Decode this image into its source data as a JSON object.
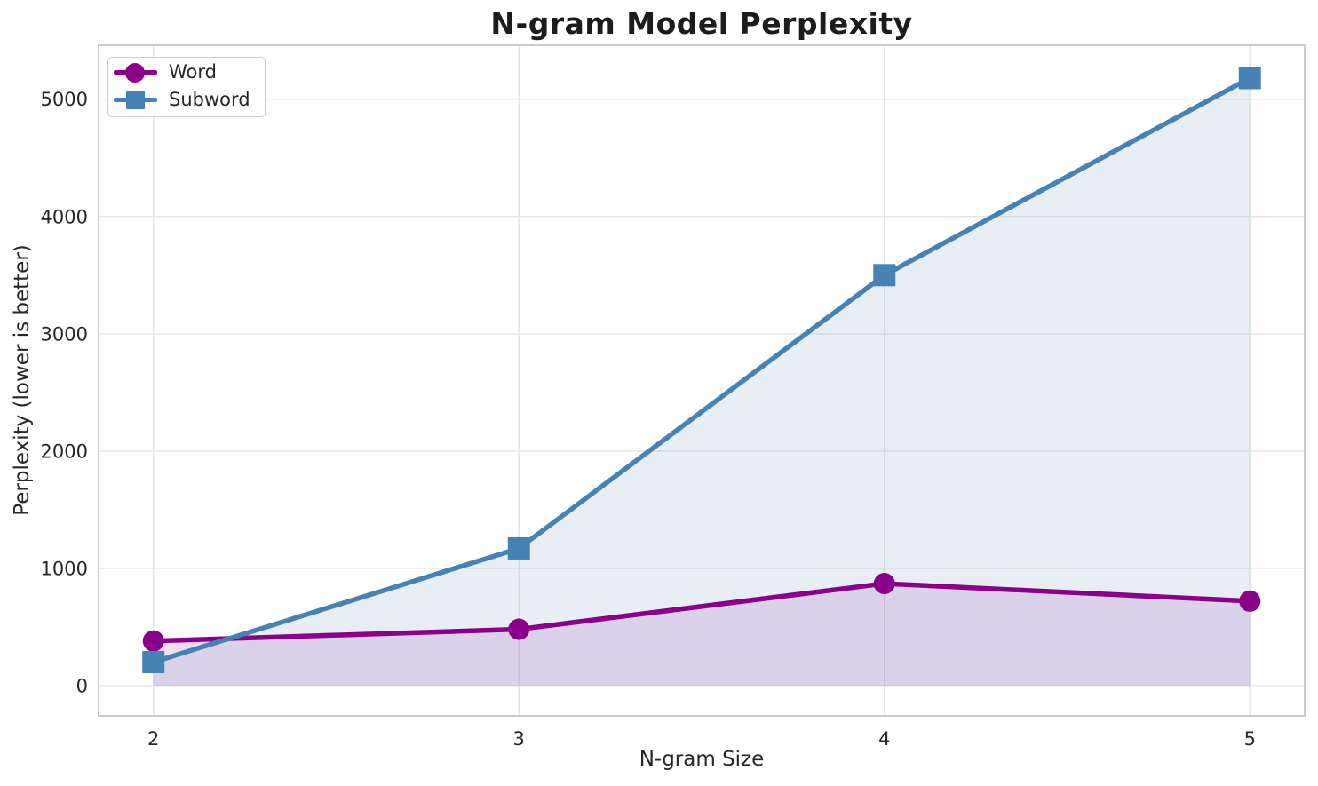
{
  "chart_data": {
    "type": "line",
    "title": "N-gram Model Perplexity",
    "xlabel": "N-gram Size",
    "ylabel": "Perplexity (lower is better)",
    "x": [
      2,
      3,
      4,
      5
    ],
    "series": [
      {
        "name": "Word",
        "marker": "circle",
        "color": "#8B008B",
        "values": [
          380,
          480,
          870,
          720
        ]
      },
      {
        "name": "Subword",
        "marker": "square",
        "color": "#4682B4",
        "values": [
          200,
          1170,
          3500,
          5180
        ]
      }
    ],
    "xtick_labels": [
      "2",
      "3",
      "4",
      "5"
    ],
    "xtick_values": [
      2,
      3,
      4,
      5
    ],
    "ytick_labels": [
      "0",
      "1000",
      "2000",
      "3000",
      "4000",
      "5000"
    ],
    "ytick_values": [
      0,
      1000,
      2000,
      3000,
      4000,
      5000
    ],
    "xlim": [
      1.85,
      5.15
    ],
    "ylim": [
      -258,
      5460
    ],
    "grid": true,
    "fill_to_zero": true,
    "fill_opacity": 0.13,
    "legend_position": "upper left"
  },
  "colors": {
    "word": "#8B008B",
    "subword": "#4682B4",
    "grid": "#E7E7E7",
    "spine": "#CBCBCB",
    "tick_text": "#262626",
    "title_text": "#1C1C1C",
    "background": "#FFFFFF"
  }
}
